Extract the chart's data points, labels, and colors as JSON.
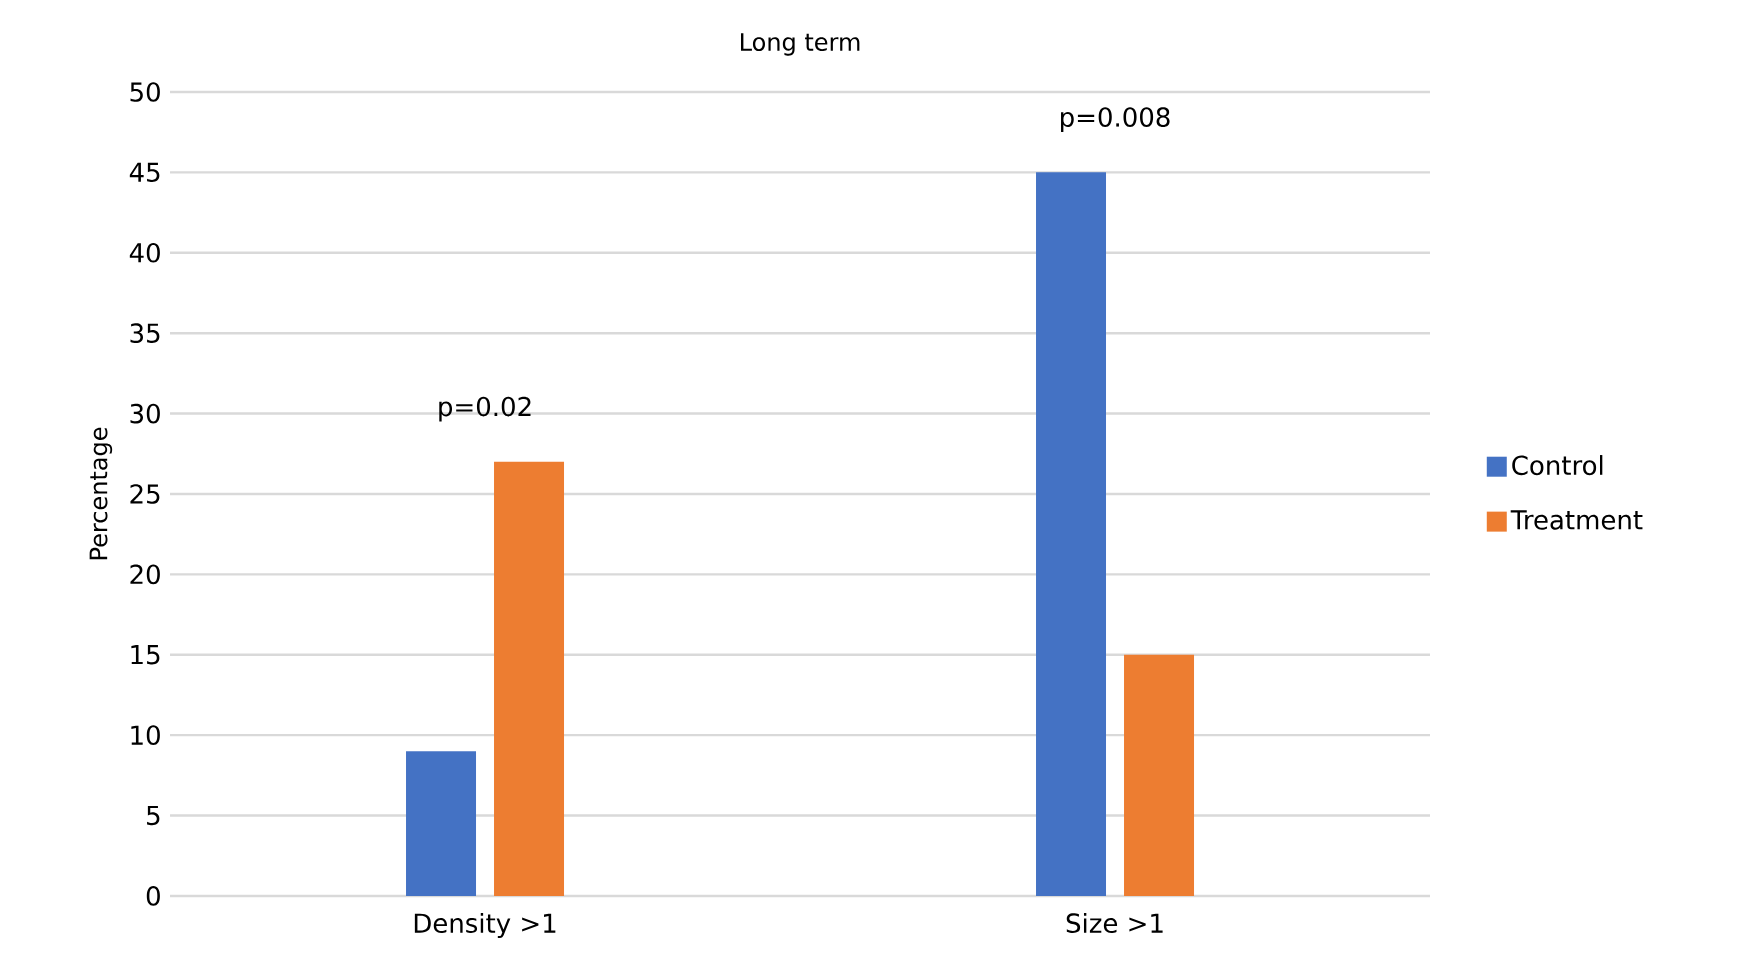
{
  "chart_data": {
    "type": "bar",
    "title": "Long term",
    "ylabel": "Percentage",
    "categories": [
      "Density >1",
      "Size >1"
    ],
    "series": [
      {
        "name": "Control",
        "color": "#4472c4",
        "values": [
          9,
          45
        ]
      },
      {
        "name": "Treatment",
        "color": "#ed7d31",
        "values": [
          27,
          15
        ]
      }
    ],
    "ylim": [
      0,
      50
    ],
    "yticks": [
      0,
      5,
      10,
      15,
      20,
      25,
      30,
      35,
      40,
      45,
      50
    ],
    "grid": "y",
    "legend": "right",
    "annotations": [
      {
        "text": "p=0.02",
        "x": "Density >1",
        "y": 27
      },
      {
        "text": "p=0.008",
        "x": "Size >1",
        "y": 45
      }
    ]
  }
}
